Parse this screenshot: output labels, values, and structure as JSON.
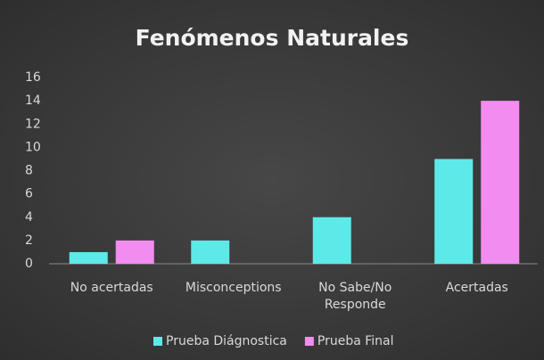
{
  "chart_data": {
    "type": "bar",
    "title": "Fenómenos Naturales",
    "categories": [
      "No acertadas",
      "Misconceptions",
      "No Sabe/No Responde",
      "Acertadas"
    ],
    "series": [
      {
        "name": "Prueba Diágnostica",
        "color": "#5ee9e9",
        "values": [
          1,
          2,
          4,
          9
        ]
      },
      {
        "name": "Prueba Final",
        "color": "#f28cf0",
        "values": [
          2,
          0,
          0,
          14
        ]
      }
    ],
    "ylim": [
      0,
      16
    ],
    "yticks": [
      0,
      2,
      4,
      6,
      8,
      10,
      12,
      14,
      16
    ],
    "grid": false,
    "legend": "bottom"
  }
}
